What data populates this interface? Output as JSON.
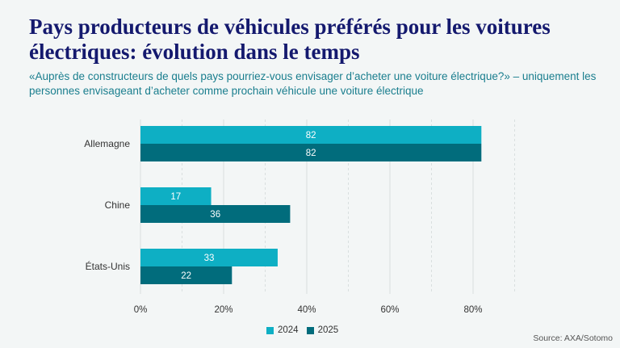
{
  "title": "Pays producteurs de véhicules préférés pour les voitures électriques: évolution dans le temps",
  "subtitle": "«Auprès de constructeurs de quels pays pourriez-vous envisager d’acheter une voiture électrique?» – uniquement les personnes envisageant d’acheter comme prochain véhicule une voiture électrique",
  "source": "Source: AXA/Sotomo",
  "colors": {
    "s2024": "#0eafc4",
    "s2025": "#016c7c",
    "grid": "#d9dfdf",
    "label": "#333333"
  },
  "chart_data": {
    "type": "bar",
    "orientation": "horizontal",
    "categories": [
      "Allemagne",
      "Chine",
      "États-Unis"
    ],
    "series": [
      {
        "name": "2024",
        "values": [
          82,
          17,
          33
        ]
      },
      {
        "name": "2025",
        "values": [
          82,
          36,
          22
        ]
      }
    ],
    "xlim": [
      0,
      90
    ],
    "xticks": [
      0,
      20,
      40,
      60,
      80
    ],
    "xtick_labels": [
      "0%",
      "20%",
      "40%",
      "60%",
      "80%"
    ],
    "grid": true,
    "legend": "bottom-center"
  }
}
